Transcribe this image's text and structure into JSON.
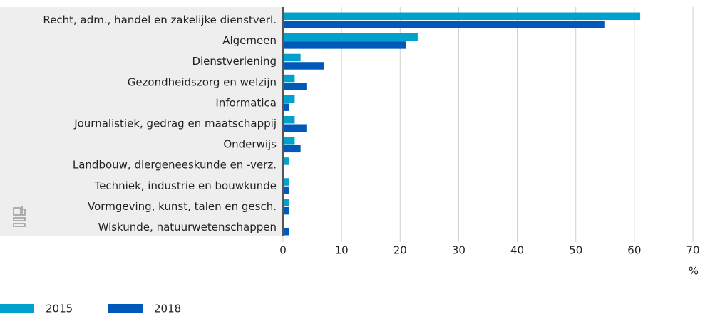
{
  "chart_data": {
    "type": "hbar",
    "categories": [
      "Recht, adm., handel en zakelijke dienstverl.",
      "Algemeen",
      "Dienstverlening",
      "Gezondheidszorg en welzijn",
      "Informatica",
      "Journalistiek, gedrag en maatschappij",
      "Onderwijs",
      "Landbouw, diergeneeskunde en -verz.",
      "Techniek, industrie en bouwkunde",
      "Vormgeving, kunst, talen en gesch.",
      "Wiskunde, natuurwetenschappen"
    ],
    "series": [
      {
        "name": "2015",
        "color": "#00a1cd",
        "values": [
          61,
          23,
          3,
          2,
          2,
          2,
          2,
          1,
          1,
          1,
          0
        ]
      },
      {
        "name": "2018",
        "color": "#0058b8",
        "values": [
          55,
          21,
          7,
          4,
          1,
          4,
          3,
          0,
          1,
          1,
          1
        ]
      }
    ],
    "x_label": "%",
    "xlim": [
      0,
      70
    ],
    "xticks": [
      0,
      10,
      20,
      30,
      40,
      50,
      60,
      70
    ],
    "grid": true
  }
}
